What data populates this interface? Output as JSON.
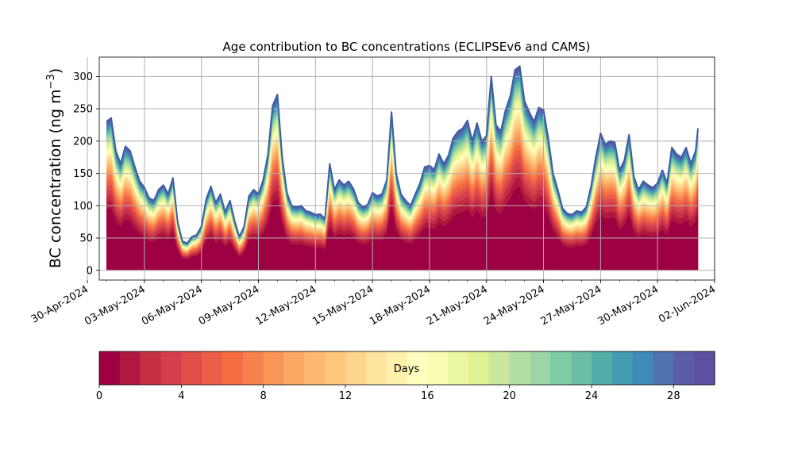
{
  "chart_data": {
    "type": "area",
    "stacked": true,
    "title": "Age contribution to BC concentrations (ECLIPSEv6 and CAMS)",
    "ylabel_main": "BC concentration (ng m",
    "ylabel_sup": "−3",
    "ylabel_close": ")",
    "xlabel": "",
    "x_axis": "date",
    "xlim": [
      "2024-04-30T15:00",
      "2024-06-02T00:00"
    ],
    "ylim": [
      -15,
      330
    ],
    "grid": true,
    "x_ticks": [
      "2024-04-30",
      "2024-05-03",
      "2024-05-06",
      "2024-05-09",
      "2024-05-12",
      "2024-05-15",
      "2024-05-18",
      "2024-05-21",
      "2024-05-24",
      "2024-05-27",
      "2024-05-30",
      "2024-06-02"
    ],
    "x_tick_labels": [
      "30-Apr-2024",
      "03-May-2024",
      "06-May-2024",
      "09-May-2024",
      "12-May-2024",
      "15-May-2024",
      "18-May-2024",
      "21-May-2024",
      "24-May-2024",
      "27-May-2024",
      "30-May-2024",
      "02-Jun-2024"
    ],
    "y_ticks": [
      0,
      50,
      100,
      150,
      200,
      250,
      300
    ],
    "y_tick_labels": [
      "0",
      "50",
      "100",
      "150",
      "200",
      "250",
      "300"
    ],
    "total_concentration": {
      "x": [
        "2024-05-01T00:00",
        "2024-05-01T06:00",
        "2024-05-01T12:00",
        "2024-05-01T18:00",
        "2024-05-02T00:00",
        "2024-05-02T06:00",
        "2024-05-02T12:00",
        "2024-05-02T18:00",
        "2024-05-03T00:00",
        "2024-05-03T06:00",
        "2024-05-03T12:00",
        "2024-05-03T18:00",
        "2024-05-04T00:00",
        "2024-05-04T06:00",
        "2024-05-04T12:00",
        "2024-05-04T18:00",
        "2024-05-05T00:00",
        "2024-05-05T06:00",
        "2024-05-05T12:00",
        "2024-05-05T18:00",
        "2024-05-06T00:00",
        "2024-05-06T06:00",
        "2024-05-06T12:00",
        "2024-05-06T18:00",
        "2024-05-07T00:00",
        "2024-05-07T06:00",
        "2024-05-07T12:00",
        "2024-05-07T18:00",
        "2024-05-08T00:00",
        "2024-05-08T06:00",
        "2024-05-08T12:00",
        "2024-05-08T18:00",
        "2024-05-09T00:00",
        "2024-05-09T06:00",
        "2024-05-09T12:00",
        "2024-05-09T18:00",
        "2024-05-10T00:00",
        "2024-05-10T06:00",
        "2024-05-10T12:00",
        "2024-05-10T18:00",
        "2024-05-11T00:00",
        "2024-05-11T06:00",
        "2024-05-11T12:00",
        "2024-05-11T18:00",
        "2024-05-12T00:00",
        "2024-05-12T06:00",
        "2024-05-12T12:00",
        "2024-05-12T18:00",
        "2024-05-13T00:00",
        "2024-05-13T06:00",
        "2024-05-13T12:00",
        "2024-05-13T18:00",
        "2024-05-14T00:00",
        "2024-05-14T06:00",
        "2024-05-14T12:00",
        "2024-05-14T18:00",
        "2024-05-15T00:00",
        "2024-05-15T06:00",
        "2024-05-15T12:00",
        "2024-05-15T18:00",
        "2024-05-16T00:00",
        "2024-05-16T06:00",
        "2024-05-16T12:00",
        "2024-05-16T18:00",
        "2024-05-17T00:00",
        "2024-05-17T06:00",
        "2024-05-17T12:00",
        "2024-05-17T18:00",
        "2024-05-18T00:00",
        "2024-05-18T06:00",
        "2024-05-18T12:00",
        "2024-05-18T18:00",
        "2024-05-19T00:00",
        "2024-05-19T06:00",
        "2024-05-19T12:00",
        "2024-05-19T18:00",
        "2024-05-20T00:00",
        "2024-05-20T06:00",
        "2024-05-20T12:00",
        "2024-05-20T18:00",
        "2024-05-21T00:00",
        "2024-05-21T06:00",
        "2024-05-21T12:00",
        "2024-05-21T18:00",
        "2024-05-22T00:00",
        "2024-05-22T06:00",
        "2024-05-22T12:00",
        "2024-05-22T18:00",
        "2024-05-23T00:00",
        "2024-05-23T06:00",
        "2024-05-23T12:00",
        "2024-05-23T18:00",
        "2024-05-24T00:00",
        "2024-05-24T06:00",
        "2024-05-24T12:00",
        "2024-05-24T18:00",
        "2024-05-25T00:00",
        "2024-05-25T06:00",
        "2024-05-25T12:00",
        "2024-05-25T18:00",
        "2024-05-26T00:00",
        "2024-05-26T06:00",
        "2024-05-26T12:00",
        "2024-05-26T18:00",
        "2024-05-27T00:00",
        "2024-05-27T06:00",
        "2024-05-27T12:00",
        "2024-05-27T18:00",
        "2024-05-28T00:00",
        "2024-05-28T06:00",
        "2024-05-28T12:00",
        "2024-05-28T18:00",
        "2024-05-29T00:00",
        "2024-05-29T06:00",
        "2024-05-29T12:00",
        "2024-05-29T18:00",
        "2024-05-30T00:00",
        "2024-05-30T06:00",
        "2024-05-30T12:00",
        "2024-05-30T18:00",
        "2024-05-31T00:00",
        "2024-05-31T06:00",
        "2024-05-31T12:00",
        "2024-05-31T18:00",
        "2024-06-01T00:00",
        "2024-06-01T03:00"
      ],
      "values": [
        230,
        236,
        185,
        165,
        192,
        185,
        160,
        138,
        128,
        112,
        108,
        125,
        132,
        118,
        143,
        75,
        45,
        42,
        52,
        55,
        68,
        110,
        130,
        105,
        118,
        90,
        108,
        76,
        52,
        68,
        115,
        125,
        118,
        140,
        180,
        255,
        272,
        175,
        120,
        100,
        98,
        100,
        92,
        90,
        86,
        87,
        80,
        165,
        125,
        140,
        132,
        138,
        126,
        105,
        98,
        102,
        120,
        115,
        118,
        140,
        245,
        150,
        118,
        108,
        100,
        118,
        135,
        160,
        162,
        156,
        180,
        165,
        178,
        205,
        215,
        220,
        232,
        200,
        228,
        200,
        208,
        300,
        225,
        215,
        248,
        270,
        310,
        316,
        262,
        245,
        230,
        252,
        248,
        205,
        150,
        125,
        96,
        88,
        86,
        92,
        90,
        98,
        130,
        175,
        212,
        195,
        200,
        198,
        155,
        170,
        210,
        145,
        125,
        138,
        132,
        128,
        135,
        155,
        135,
        190,
        180,
        175,
        190,
        165,
        185,
        220
      ]
    },
    "age_classes_days": [
      0,
      30
    ],
    "colorbar": {
      "label": "Days",
      "ticks": [
        0,
        4,
        8,
        12,
        16,
        20,
        24,
        28
      ],
      "tick_labels": [
        "0",
        "4",
        "8",
        "12",
        "16",
        "20",
        "24",
        "28"
      ],
      "range": [
        0,
        30
      ],
      "bins": 30,
      "colors": [
        "#9e0142",
        "#b1183f",
        "#c42f42",
        "#d53e4f",
        "#e04e4a",
        "#eb5f47",
        "#f46d43",
        "#f7814c",
        "#f99557",
        "#fca862",
        "#fdb96f",
        "#fdc77e",
        "#fed58d",
        "#fee39c",
        "#fff0ab",
        "#ffffbf",
        "#f8fbb0",
        "#ecf7a1",
        "#dff191",
        "#c9e79d",
        "#b4dfa2",
        "#9dd6a4",
        "#7fcba4",
        "#6abea7",
        "#55adaa",
        "#459bb0",
        "#3f8ab8",
        "#4e73b0",
        "#5a5ea8",
        "#5e4fa2"
      ]
    }
  }
}
